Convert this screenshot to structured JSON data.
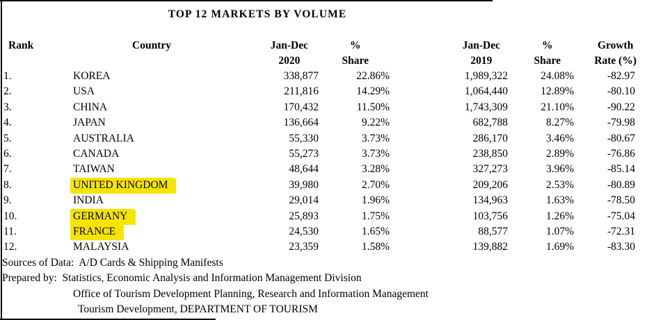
{
  "title": "TOP 12 MARKETS BY VOLUME",
  "colors": {
    "highlight": "#f6e400",
    "text": "#000000",
    "edge": "#000000"
  },
  "table": {
    "headers": {
      "rank": "Rank",
      "country": "Country",
      "v2020_line1": "Jan-Dec",
      "v2020_line2": "2020",
      "s2020_line1": "%",
      "s2020_line2": "Share",
      "v2019_line1": "Jan-Dec",
      "v2019_line2": "2019",
      "s2019_line1": "%",
      "s2019_line2": "Share",
      "growth_line1": "Growth",
      "growth_line2": "Rate (%)"
    },
    "rows": [
      {
        "rank": "1.",
        "country": "KOREA",
        "v2020": "338,877",
        "share2020": "22.86%",
        "v2019": "1,989,322",
        "share2019": "24.08%",
        "growth": "-82.97",
        "highlight": false
      },
      {
        "rank": "2.",
        "country": "USA",
        "v2020": "211,816",
        "share2020": "14.29%",
        "v2019": "1,064,440",
        "share2019": "12.89%",
        "growth": "-80.10",
        "highlight": false
      },
      {
        "rank": "3.",
        "country": "CHINA",
        "v2020": "170,432",
        "share2020": "11.50%",
        "v2019": "1,743,309",
        "share2019": "21.10%",
        "growth": "-90.22",
        "highlight": false
      },
      {
        "rank": "4.",
        "country": "JAPAN",
        "v2020": "136,664",
        "share2020": "9.22%",
        "v2019": "682,788",
        "share2019": "8.27%",
        "growth": "-79.98",
        "highlight": false
      },
      {
        "rank": "5.",
        "country": "AUSTRALIA",
        "v2020": "55,330",
        "share2020": "3.73%",
        "v2019": "286,170",
        "share2019": "3.46%",
        "growth": "-80.67",
        "highlight": false
      },
      {
        "rank": "6.",
        "country": "CANADA",
        "v2020": "55,273",
        "share2020": "3.73%",
        "v2019": "238,850",
        "share2019": "2.89%",
        "growth": "-76.86",
        "highlight": false
      },
      {
        "rank": "7.",
        "country": "TAIWAN",
        "v2020": "48,644",
        "share2020": "3.28%",
        "v2019": "327,273",
        "share2019": "3.96%",
        "growth": "-85.14",
        "highlight": false
      },
      {
        "rank": "8.",
        "country": "UNITED KINGDOM",
        "v2020": "39,980",
        "share2020": "2.70%",
        "v2019": "209,206",
        "share2019": "2.53%",
        "growth": "-80.89",
        "highlight": true
      },
      {
        "rank": "9.",
        "country": "INDIA",
        "v2020": "29,014",
        "share2020": "1.96%",
        "v2019": "134,963",
        "share2019": "1.63%",
        "growth": "-78.50",
        "highlight": false
      },
      {
        "rank": "10.",
        "country": "GERMANY",
        "v2020": "25,893",
        "share2020": "1.75%",
        "v2019": "103,756",
        "share2019": "1.26%",
        "growth": "-75.04",
        "highlight": true
      },
      {
        "rank": "11.",
        "country": "FRANCE",
        "v2020": "24,530",
        "share2020": "1.65%",
        "v2019": "88,577",
        "share2019": "1.07%",
        "growth": "-72.31",
        "highlight": true
      },
      {
        "rank": "12.",
        "country": "MALAYSIA",
        "v2020": "23,359",
        "share2020": "1.58%",
        "v2019": "139,882",
        "share2019": "1.69%",
        "growth": "-83.30",
        "highlight": false
      }
    ]
  },
  "footer": {
    "line1": "Sources of Data:  A/D Cards & Shipping Manifests",
    "line2": "Prepared by:  Statistics, Economic Analysis and Information Management Division",
    "line3": "Office of Tourism Development Planning, Research and Information Management",
    "line4": "Tourism Development, DEPARTMENT OF TOURISM"
  }
}
